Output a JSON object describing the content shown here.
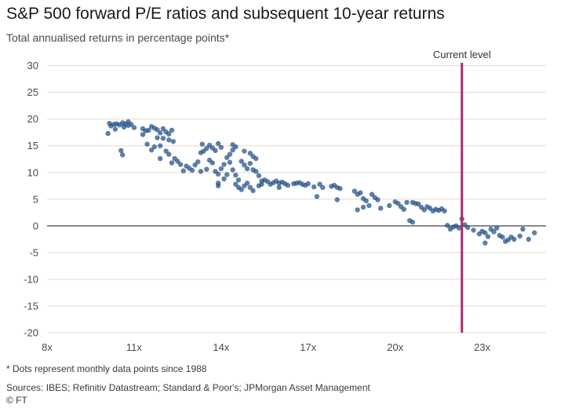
{
  "header": {
    "title": "S&P 500 forward P/E ratios and subsequent 10-year returns",
    "subtitle": "Total annualised returns in percentage points*"
  },
  "footer": {
    "footnote": "* Dots represent monthly data points since 1988",
    "sources": "Sources: IBES; Refinitiv Datastream; Standard & Poor's; JPMorgan Asset Management",
    "credit": "© FT"
  },
  "colors": {
    "dot": "#1f4e85",
    "current_line": "#b0286e",
    "grid": "#e8d8c8",
    "zero_line": "#444444"
  },
  "chart_data": {
    "type": "scatter",
    "title": "S&P 500 forward P/E ratios and subsequent 10-year returns",
    "subtitle": "Total annualised returns in percentage points*",
    "xlim": [
      8,
      25.2
    ],
    "ylim": [
      -20,
      32
    ],
    "x_ticks": [
      8,
      11,
      14,
      17,
      20,
      23
    ],
    "x_tick_labels": [
      "8x",
      "11x",
      "14x",
      "17x",
      "20x",
      "23x"
    ],
    "y_ticks": [
      30,
      25,
      20,
      15,
      10,
      5,
      0,
      -5,
      -10,
      -15,
      -20
    ],
    "y_tick_labels": [
      "30",
      "25",
      "20",
      "15",
      "10",
      "5",
      "0",
      "-5",
      "-10",
      "-15",
      "-20"
    ],
    "grid": "horizontal",
    "annotations": [
      {
        "text": "Current level",
        "x": 22.3
      }
    ],
    "points": [
      [
        10.1,
        17.3
      ],
      [
        10.15,
        19.2
      ],
      [
        10.3,
        19.0
      ],
      [
        10.4,
        19.1
      ],
      [
        10.2,
        18.7
      ],
      [
        10.35,
        18.1
      ],
      [
        10.5,
        18.9
      ],
      [
        10.6,
        19.3
      ],
      [
        10.7,
        19.1
      ],
      [
        10.8,
        18.8
      ],
      [
        10.9,
        19.0
      ],
      [
        11.0,
        18.4
      ],
      [
        10.8,
        19.5
      ],
      [
        10.65,
        18.5
      ],
      [
        10.55,
        14.1
      ],
      [
        10.6,
        13.3
      ],
      [
        11.3,
        18.2
      ],
      [
        11.4,
        17.8
      ],
      [
        11.5,
        17.9
      ],
      [
        11.6,
        18.6
      ],
      [
        11.7,
        18.3
      ],
      [
        11.8,
        18.0
      ],
      [
        11.9,
        17.4
      ],
      [
        12.0,
        18.2
      ],
      [
        12.1,
        17.6
      ],
      [
        12.2,
        17.2
      ],
      [
        12.3,
        17.9
      ],
      [
        11.3,
        17.1
      ],
      [
        11.45,
        15.3
      ],
      [
        11.6,
        14.2
      ],
      [
        11.7,
        14.8
      ],
      [
        11.9,
        15.0
      ],
      [
        11.8,
        16.5
      ],
      [
        12.0,
        16.4
      ],
      [
        12.2,
        16.1
      ],
      [
        12.35,
        15.8
      ],
      [
        12.1,
        14.0
      ],
      [
        12.2,
        13.4
      ],
      [
        12.4,
        12.6
      ],
      [
        12.5,
        12.1
      ],
      [
        11.9,
        12.6
      ],
      [
        12.3,
        11.8
      ],
      [
        12.6,
        11.5
      ],
      [
        12.8,
        11.2
      ],
      [
        12.9,
        10.8
      ],
      [
        13.0,
        10.4
      ],
      [
        12.7,
        10.3
      ],
      [
        13.1,
        11.4
      ],
      [
        13.2,
        12.0
      ],
      [
        13.3,
        13.7
      ],
      [
        13.4,
        14.0
      ],
      [
        13.35,
        15.3
      ],
      [
        13.5,
        14.5
      ],
      [
        13.6,
        15.1
      ],
      [
        13.7,
        14.6
      ],
      [
        13.8,
        14.1
      ],
      [
        13.9,
        15.4
      ],
      [
        14.0,
        14.7
      ],
      [
        13.3,
        10.2
      ],
      [
        13.5,
        10.6
      ],
      [
        13.6,
        12.3
      ],
      [
        13.7,
        11.8
      ],
      [
        13.8,
        10.2
      ],
      [
        13.9,
        9.7
      ],
      [
        14.0,
        10.7
      ],
      [
        13.9,
        8.0
      ],
      [
        13.9,
        7.5
      ],
      [
        14.1,
        8.8
      ],
      [
        14.2,
        9.6
      ],
      [
        14.1,
        11.5
      ],
      [
        14.2,
        12.8
      ],
      [
        14.3,
        13.4
      ],
      [
        14.4,
        14.2
      ],
      [
        14.5,
        14.8
      ],
      [
        14.4,
        15.2
      ],
      [
        14.3,
        11.9
      ],
      [
        14.4,
        10.5
      ],
      [
        14.5,
        9.5
      ],
      [
        14.6,
        8.6
      ],
      [
        14.5,
        7.8
      ],
      [
        14.6,
        7.2
      ],
      [
        14.7,
        6.8
      ],
      [
        14.8,
        7.5
      ],
      [
        14.9,
        8.0
      ],
      [
        15.0,
        7.2
      ],
      [
        15.1,
        6.6
      ],
      [
        14.7,
        12.1
      ],
      [
        14.8,
        11.4
      ],
      [
        14.9,
        10.7
      ],
      [
        15.0,
        11.7
      ],
      [
        15.1,
        10.5
      ],
      [
        15.2,
        10.2
      ],
      [
        15.3,
        9.4
      ],
      [
        15.4,
        8.4
      ],
      [
        15.3,
        7.5
      ],
      [
        15.0,
        13.6
      ],
      [
        15.1,
        13.0
      ],
      [
        15.2,
        12.6
      ],
      [
        14.8,
        14.0
      ],
      [
        15.4,
        7.8
      ],
      [
        15.5,
        8.6
      ],
      [
        15.6,
        8.3
      ],
      [
        15.7,
        7.8
      ],
      [
        15.8,
        8.1
      ],
      [
        15.9,
        8.4
      ],
      [
        16.0,
        8.0
      ],
      [
        16.1,
        8.2
      ],
      [
        16.2,
        7.9
      ],
      [
        16.3,
        7.6
      ],
      [
        16.0,
        7.2
      ],
      [
        16.5,
        7.9
      ],
      [
        16.6,
        8.0
      ],
      [
        16.7,
        8.1
      ],
      [
        16.8,
        7.8
      ],
      [
        16.9,
        7.6
      ],
      [
        17.0,
        7.9
      ],
      [
        17.2,
        7.3
      ],
      [
        17.4,
        7.8
      ],
      [
        17.5,
        7.2
      ],
      [
        17.3,
        5.5
      ],
      [
        17.8,
        7.4
      ],
      [
        17.9,
        7.6
      ],
      [
        18.0,
        7.2
      ],
      [
        18.1,
        7.0
      ],
      [
        18.0,
        4.9
      ],
      [
        18.6,
        6.5
      ],
      [
        18.7,
        5.9
      ],
      [
        18.8,
        6.2
      ],
      [
        18.9,
        5.1
      ],
      [
        19.0,
        4.7
      ],
      [
        19.1,
        3.8
      ],
      [
        18.7,
        3.0
      ],
      [
        18.9,
        3.5
      ],
      [
        19.2,
        5.9
      ],
      [
        19.3,
        5.3
      ],
      [
        19.4,
        4.9
      ],
      [
        19.5,
        3.3
      ],
      [
        19.8,
        3.8
      ],
      [
        20.0,
        4.5
      ],
      [
        20.1,
        4.2
      ],
      [
        20.2,
        3.6
      ],
      [
        20.3,
        3.1
      ],
      [
        20.4,
        4.4
      ],
      [
        20.6,
        4.4
      ],
      [
        20.7,
        4.2
      ],
      [
        20.5,
        1.0
      ],
      [
        20.6,
        0.7
      ],
      [
        20.8,
        4.1
      ],
      [
        20.9,
        3.5
      ],
      [
        21.0,
        3.0
      ],
      [
        21.1,
        3.6
      ],
      [
        21.2,
        3.3
      ],
      [
        21.3,
        2.8
      ],
      [
        21.4,
        3.1
      ],
      [
        21.5,
        2.9
      ],
      [
        21.6,
        3.2
      ],
      [
        21.7,
        2.8
      ],
      [
        21.8,
        0.1
      ],
      [
        21.9,
        -0.6
      ],
      [
        22.0,
        -0.2
      ],
      [
        22.1,
        0.0
      ],
      [
        22.2,
        -0.4
      ],
      [
        22.3,
        1.3
      ],
      [
        22.4,
        0.2
      ],
      [
        22.5,
        -0.3
      ],
      [
        22.7,
        -0.8
      ],
      [
        22.9,
        -1.5
      ],
      [
        23.0,
        -1.0
      ],
      [
        23.1,
        -1.3
      ],
      [
        23.2,
        -2.0
      ],
      [
        23.3,
        -0.6
      ],
      [
        23.4,
        -1.1
      ],
      [
        23.5,
        -0.4
      ],
      [
        23.6,
        -1.8
      ],
      [
        23.7,
        -2.1
      ],
      [
        23.1,
        -3.2
      ],
      [
        23.9,
        -2.6
      ],
      [
        24.0,
        -2.1
      ],
      [
        24.1,
        -2.5
      ],
      [
        24.3,
        -1.9
      ],
      [
        24.4,
        -0.6
      ],
      [
        24.6,
        -2.5
      ],
      [
        24.8,
        -1.3
      ],
      [
        23.8,
        -2.9
      ]
    ]
  }
}
